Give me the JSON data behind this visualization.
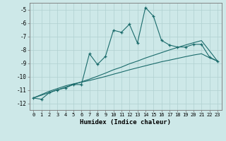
{
  "xlabel": "Humidex (Indice chaleur)",
  "background_color": "#cde8e8",
  "grid_color": "#b0d0d0",
  "line_color": "#1a6b6b",
  "x_data": [
    0,
    1,
    2,
    3,
    4,
    5,
    6,
    7,
    8,
    9,
    10,
    11,
    12,
    13,
    14,
    15,
    16,
    17,
    18,
    19,
    20,
    21,
    22,
    23
  ],
  "y_jagged": [
    -11.6,
    -11.7,
    -11.2,
    -11.0,
    -10.85,
    -10.6,
    -10.6,
    -8.3,
    -9.1,
    -8.5,
    -6.55,
    -6.7,
    -6.1,
    -7.5,
    -4.85,
    -5.5,
    -7.3,
    -7.65,
    -7.8,
    -7.8,
    -7.6,
    -7.6,
    -8.55,
    -8.85
  ],
  "y_smooth1": [
    -11.6,
    -11.35,
    -11.1,
    -10.9,
    -10.7,
    -10.55,
    -10.42,
    -10.3,
    -10.15,
    -10.0,
    -9.83,
    -9.67,
    -9.5,
    -9.35,
    -9.2,
    -9.05,
    -8.9,
    -8.78,
    -8.65,
    -8.52,
    -8.4,
    -8.3,
    -8.6,
    -8.85
  ],
  "y_smooth2": [
    -11.6,
    -11.4,
    -11.2,
    -11.0,
    -10.8,
    -10.6,
    -10.4,
    -10.2,
    -9.98,
    -9.75,
    -9.5,
    -9.3,
    -9.05,
    -8.85,
    -8.62,
    -8.42,
    -8.22,
    -8.02,
    -7.83,
    -7.65,
    -7.48,
    -7.32,
    -8.08,
    -8.85
  ],
  "ylim": [
    -12.5,
    -4.5
  ],
  "xlim": [
    -0.5,
    23.5
  ],
  "yticks": [
    -12,
    -11,
    -10,
    -9,
    -8,
    -7,
    -6,
    -5
  ],
  "xticks": [
    0,
    1,
    2,
    3,
    4,
    5,
    6,
    7,
    8,
    9,
    10,
    11,
    12,
    13,
    14,
    15,
    16,
    17,
    18,
    19,
    20,
    21,
    22,
    23
  ]
}
